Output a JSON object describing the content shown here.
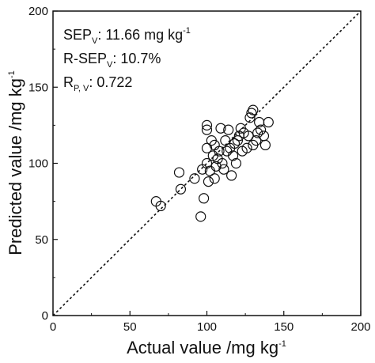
{
  "chart_data": {
    "type": "scatter",
    "xlabel": {
      "text": "Actual value /mg kg",
      "sup": "-1"
    },
    "ylabel": {
      "text": "Predicted value /mg kg",
      "sup": "-1"
    },
    "xlim": [
      0,
      200
    ],
    "ylim": [
      0,
      200
    ],
    "xticks": [
      "0",
      "50",
      "100",
      "150",
      "200"
    ],
    "yticks": [
      "0",
      "50",
      "100",
      "150",
      "200"
    ],
    "grid": false,
    "reference_line": {
      "style": "dashed",
      "from": [
        0,
        0
      ],
      "to": [
        200,
        200
      ]
    },
    "marker": "open-circle",
    "annotations": [
      {
        "main": "SEP",
        "sub": "V",
        "rest": ": 11.66 mg kg",
        "sup": "-1"
      },
      {
        "main": "R-SEP",
        "sub": "V",
        "rest": ": 10.7%",
        "sup": ""
      },
      {
        "main": "R",
        "sub": "P, V",
        "rest": ": 0.722",
        "sup": ""
      }
    ],
    "points": [
      {
        "x": 67,
        "y": 75
      },
      {
        "x": 70,
        "y": 72
      },
      {
        "x": 82,
        "y": 94
      },
      {
        "x": 83,
        "y": 83
      },
      {
        "x": 92,
        "y": 90
      },
      {
        "x": 96,
        "y": 65
      },
      {
        "x": 97,
        "y": 96
      },
      {
        "x": 98,
        "y": 77
      },
      {
        "x": 100,
        "y": 125
      },
      {
        "x": 100,
        "y": 122
      },
      {
        "x": 100,
        "y": 110
      },
      {
        "x": 100,
        "y": 100
      },
      {
        "x": 101,
        "y": 88
      },
      {
        "x": 102,
        "y": 95
      },
      {
        "x": 103,
        "y": 115
      },
      {
        "x": 104,
        "y": 105
      },
      {
        "x": 105,
        "y": 90
      },
      {
        "x": 105,
        "y": 112
      },
      {
        "x": 106,
        "y": 98
      },
      {
        "x": 107,
        "y": 103
      },
      {
        "x": 108,
        "y": 108
      },
      {
        "x": 109,
        "y": 123
      },
      {
        "x": 110,
        "y": 100
      },
      {
        "x": 111,
        "y": 96
      },
      {
        "x": 112,
        "y": 115
      },
      {
        "x": 113,
        "y": 108
      },
      {
        "x": 114,
        "y": 122
      },
      {
        "x": 115,
        "y": 110
      },
      {
        "x": 116,
        "y": 92
      },
      {
        "x": 117,
        "y": 105
      },
      {
        "x": 118,
        "y": 113
      },
      {
        "x": 119,
        "y": 100
      },
      {
        "x": 120,
        "y": 115
      },
      {
        "x": 121,
        "y": 118
      },
      {
        "x": 122,
        "y": 123
      },
      {
        "x": 123,
        "y": 108
      },
      {
        "x": 124,
        "y": 120
      },
      {
        "x": 126,
        "y": 110
      },
      {
        "x": 127,
        "y": 118
      },
      {
        "x": 128,
        "y": 130
      },
      {
        "x": 129,
        "y": 133
      },
      {
        "x": 130,
        "y": 135
      },
      {
        "x": 130,
        "y": 112
      },
      {
        "x": 132,
        "y": 115
      },
      {
        "x": 133,
        "y": 120
      },
      {
        "x": 134,
        "y": 127
      },
      {
        "x": 135,
        "y": 122
      },
      {
        "x": 137,
        "y": 118
      },
      {
        "x": 138,
        "y": 112
      },
      {
        "x": 140,
        "y": 127
      }
    ]
  }
}
